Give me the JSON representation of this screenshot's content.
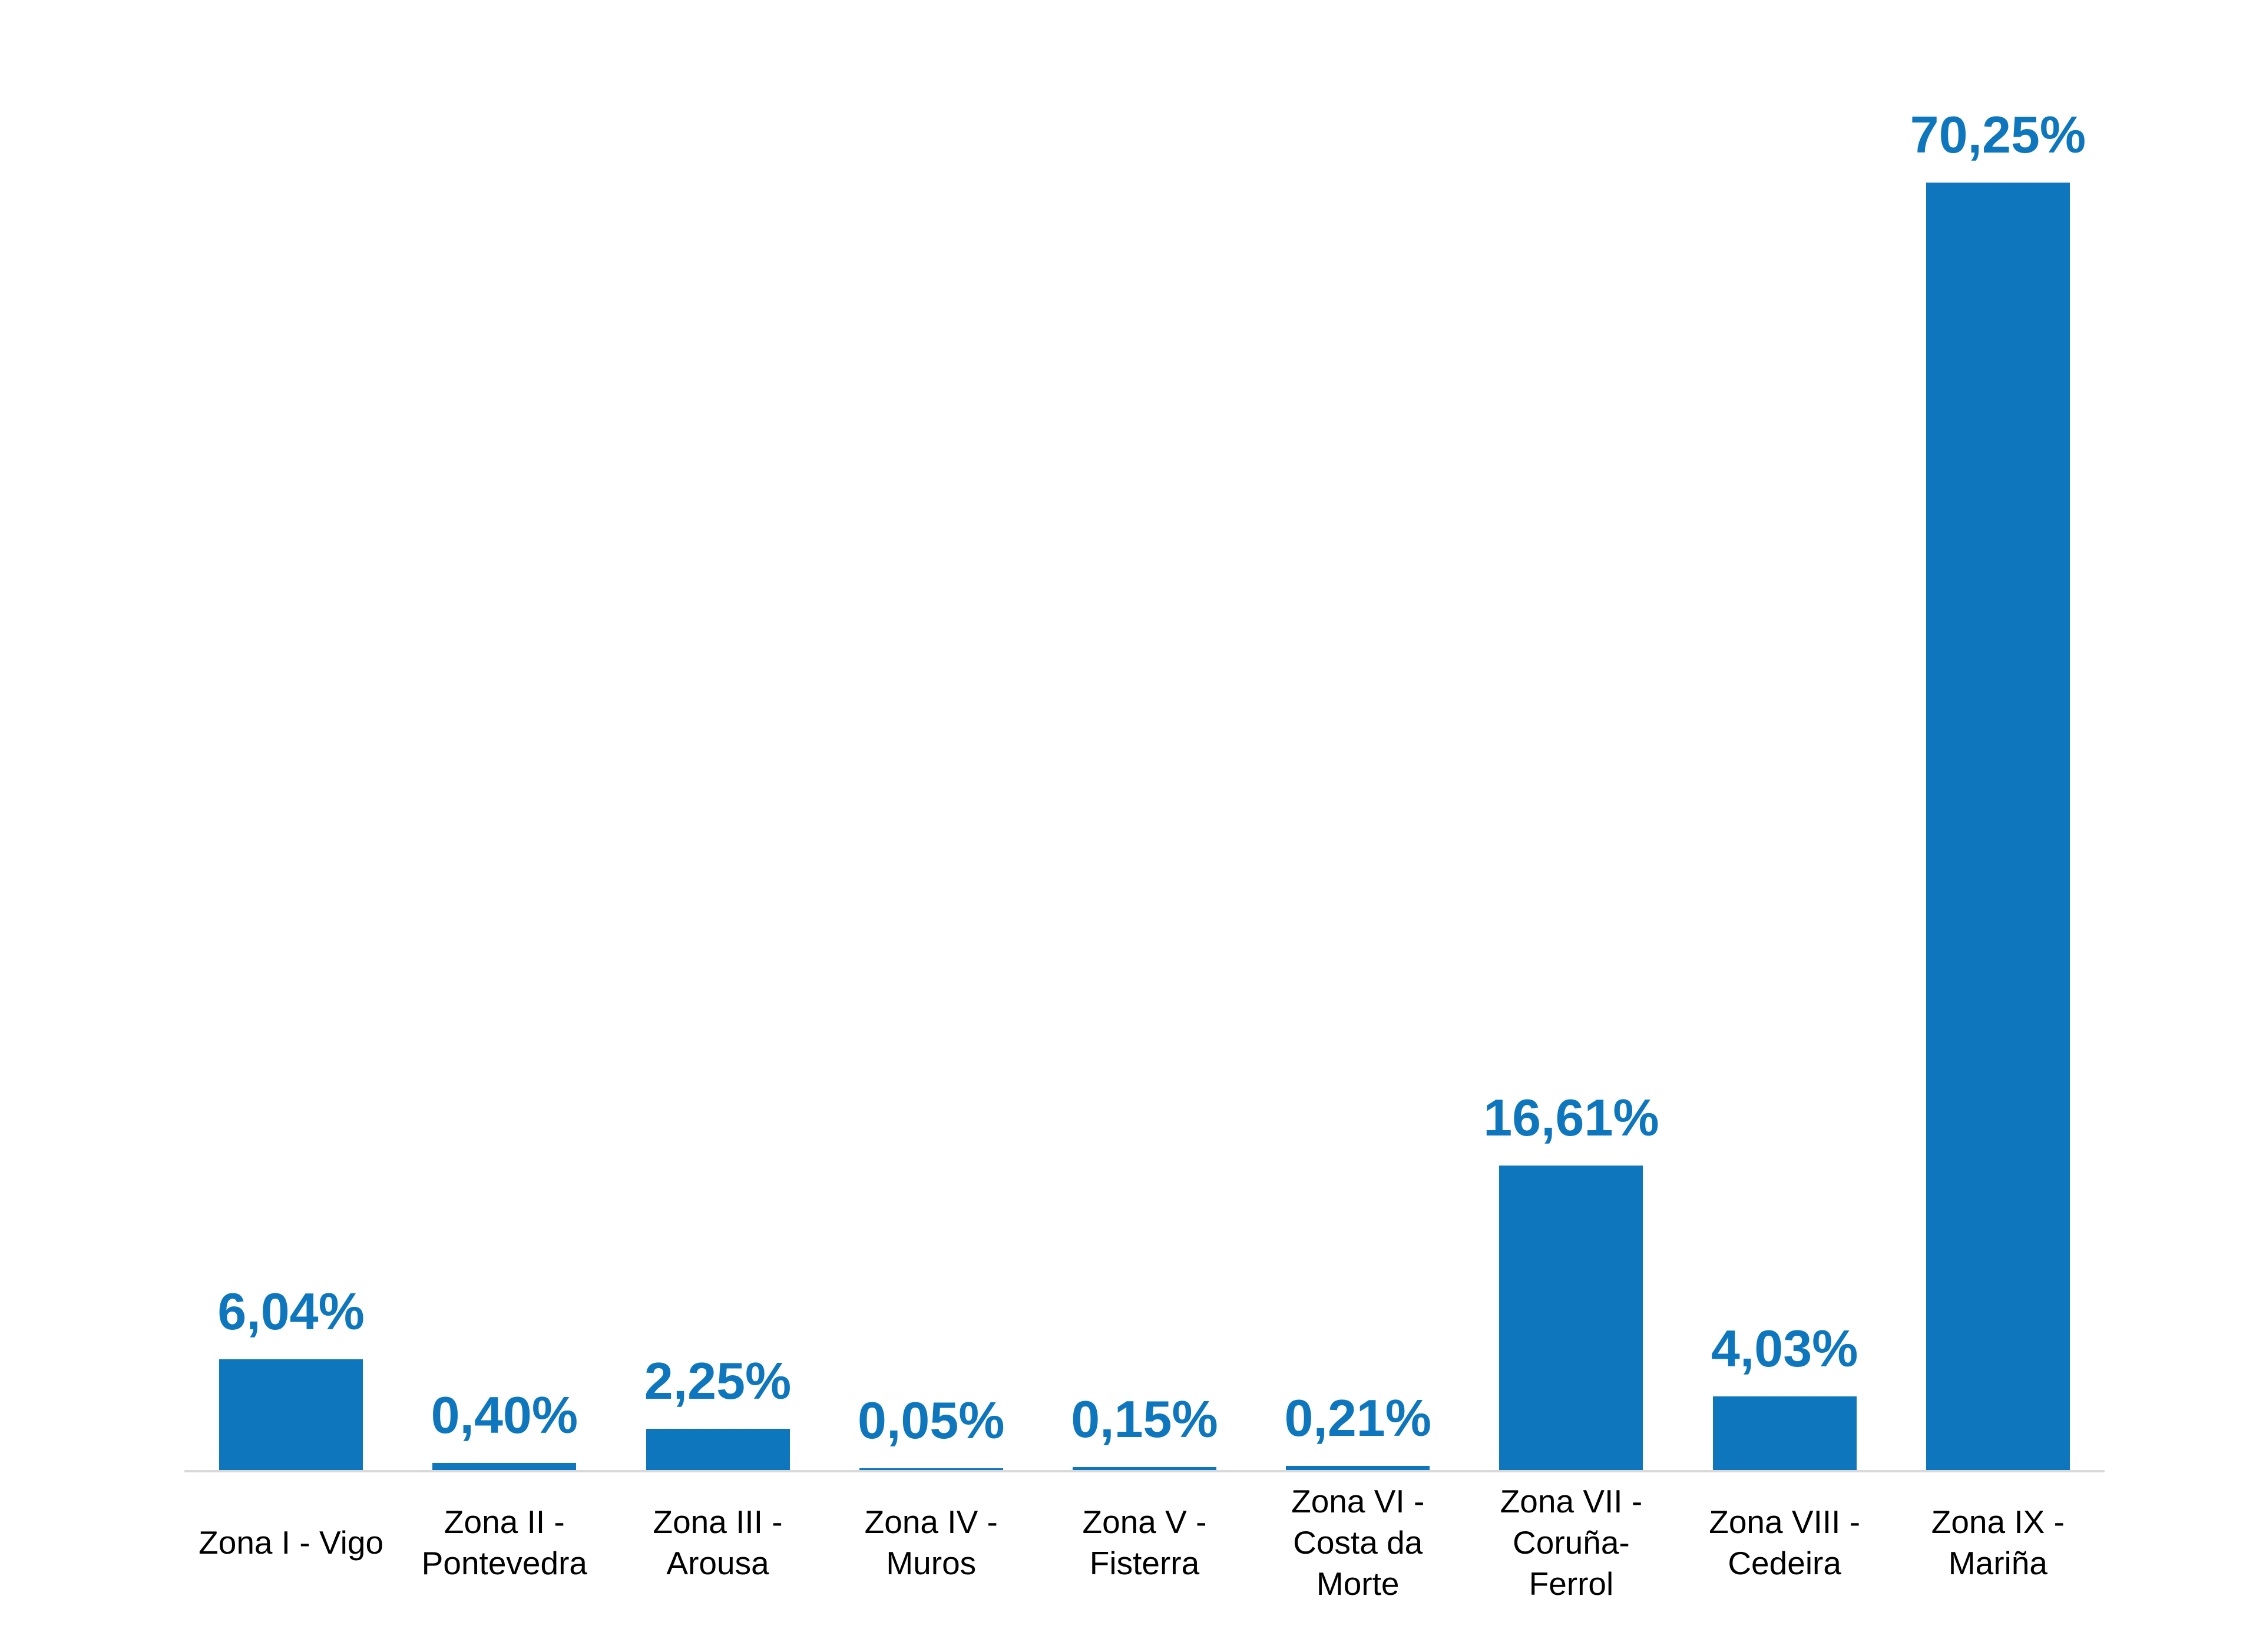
{
  "chart_data": {
    "type": "bar",
    "title": "",
    "xlabel": "",
    "ylabel": "",
    "categories": [
      "Zona I - Vigo",
      "Zona II - Pontevedra",
      "Zona III - Arousa",
      "Zona IV - Muros",
      "Zona V - Fisterra",
      "Zona VI - Costa da Morte",
      "Zona VII - Coruña-Ferrol",
      "Zona VIII - Cedeira",
      "Zona IX - Mariña"
    ],
    "display_labels": [
      "Zona I - Vigo",
      "Zona II -\nPontevedra",
      "Zona III -\nArousa",
      "Zona IV -\nMuros",
      "Zona V -\nFisterra",
      "Zona VI -\nCosta da\nMorte",
      "Zona VII -\nCoruña-\nFerrol",
      "Zona VIII -\nCedeira",
      "Zona IX -\nMariña"
    ],
    "values": [
      6.04,
      0.4,
      2.25,
      0.05,
      0.15,
      0.21,
      16.61,
      4.03,
      70.25
    ],
    "value_labels": [
      "6,04%",
      "0,40%",
      "2,25%",
      "0,05%",
      "0,15%",
      "0,21%",
      "16,61%",
      "4,03%",
      "70,25%"
    ],
    "unit": "%",
    "decimal_separator": ",",
    "ylim": [
      0,
      75
    ],
    "grid": false,
    "legend_position": "none",
    "bar_color": "#0e76bc",
    "data_label_color": "#0e76bc",
    "axis_line_color": "#d9d9d9",
    "category_label_color": "#000000",
    "background_color": "#ffffff"
  }
}
